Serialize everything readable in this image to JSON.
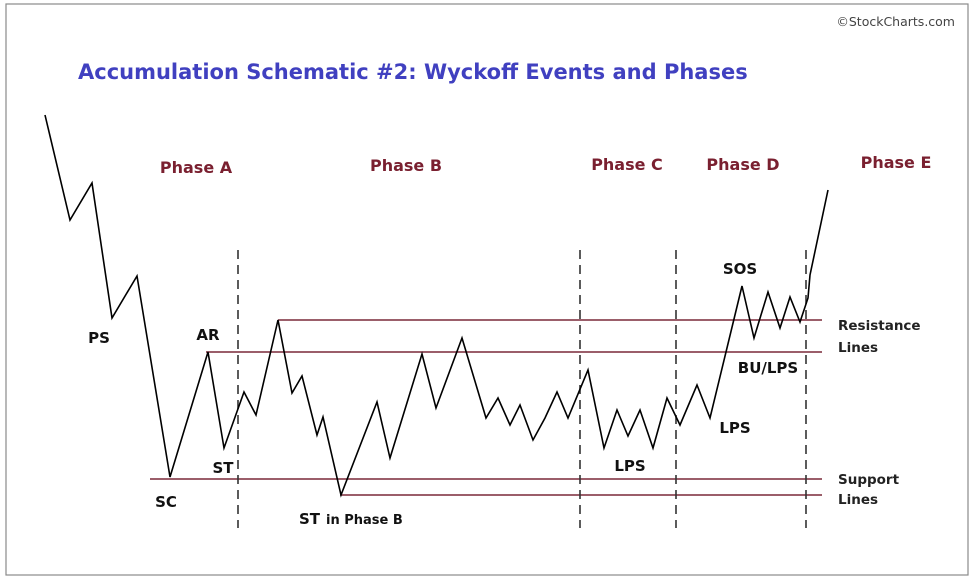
{
  "title": "Accumulation Schematic #2: Wyckoff Events and Phases",
  "credit": "©StockCharts.com",
  "phases": [
    {
      "label": "Phase A"
    },
    {
      "label": "Phase B"
    },
    {
      "label": "Phase C"
    },
    {
      "label": "Phase D"
    },
    {
      "label": "Phase E"
    }
  ],
  "events": [
    {
      "label": "PS"
    },
    {
      "label": "SC"
    },
    {
      "label": "AR"
    },
    {
      "label": "ST"
    },
    {
      "label": "ST"
    },
    {
      "label": "in Phase B"
    },
    {
      "label": "LPS"
    },
    {
      "label": "LPS"
    },
    {
      "label": "SOS"
    },
    {
      "label": "BU/LPS"
    }
  ],
  "levels": {
    "resistance": {
      "line1": "Resistance",
      "line2": "Lines"
    },
    "support": {
      "line1": "Support",
      "line2": "Lines"
    }
  },
  "colors": {
    "title": "#4040c0",
    "phase_labels": "#7a2030",
    "level_lines": "#7a2838",
    "price_path": "#000000"
  }
}
